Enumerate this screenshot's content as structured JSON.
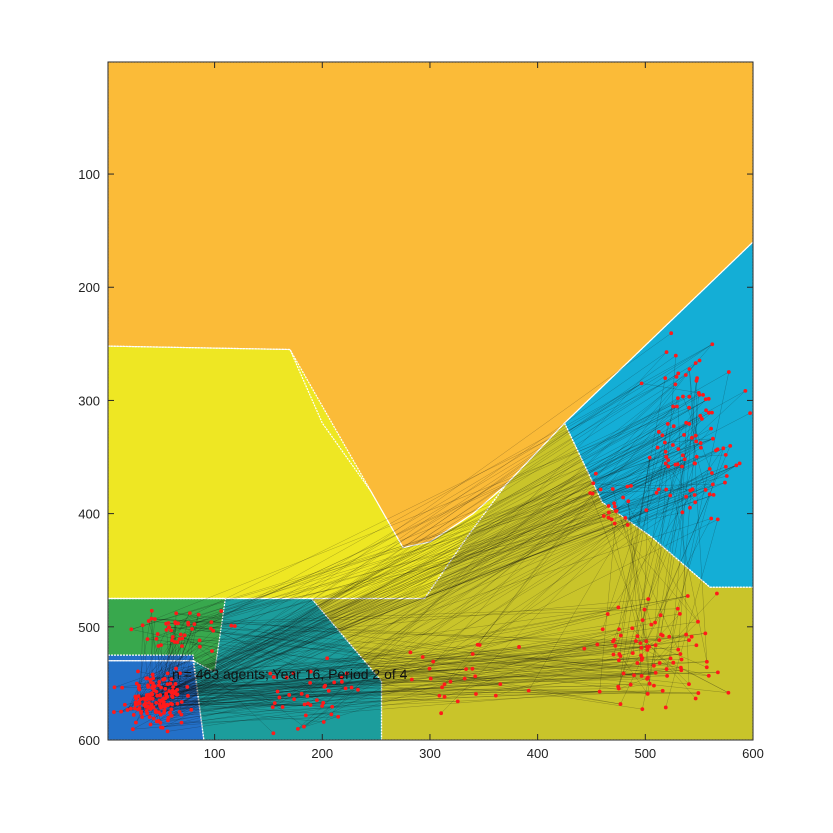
{
  "chart_data": {
    "type": "scatter",
    "annotation": "n = 463 agents; Year 16, Period 2 of 4",
    "xlim": [
      1,
      600
    ],
    "ylim": [
      1,
      600
    ],
    "y_reversed": true,
    "xticks": [
      100,
      200,
      300,
      400,
      500,
      600
    ],
    "yticks": [
      100,
      200,
      300,
      400,
      500,
      600
    ],
    "grid": false,
    "legend": "none",
    "colors": {
      "orange": "#fbbb38",
      "yellow": "#eee723",
      "olive": "#c9c42a",
      "blue": "#14aed6",
      "teal": "#1c9d9c",
      "dark_blue": "#2370c8",
      "green": "#38a84d",
      "points": "#ff1a1a",
      "trajectories": "#111111",
      "boundaries": "#ffffff"
    },
    "regions": [
      {
        "name": "orange",
        "points": [
          [
            1,
            1
          ],
          [
            600,
            1
          ],
          [
            600,
            160
          ],
          [
            425,
            320
          ],
          [
            370,
            375
          ],
          [
            340,
            400
          ],
          [
            300,
            425
          ],
          [
            275,
            430
          ],
          [
            245,
            380
          ],
          [
            200,
            320
          ],
          [
            170,
            255
          ],
          [
            1,
            252
          ]
        ]
      },
      {
        "name": "yellow",
        "points": [
          [
            1,
            252
          ],
          [
            170,
            255
          ],
          [
            245,
            380
          ],
          [
            275,
            430
          ],
          [
            300,
            425
          ],
          [
            340,
            400
          ],
          [
            370,
            375
          ],
          [
            335,
            420
          ],
          [
            295,
            475
          ],
          [
            1,
            475
          ]
        ]
      },
      {
        "name": "blue",
        "points": [
          [
            425,
            320
          ],
          [
            600,
            160
          ],
          [
            600,
            465
          ],
          [
            560,
            465
          ],
          [
            505,
            420
          ],
          [
            460,
            390
          ]
        ]
      },
      {
        "name": "olive",
        "points": [
          [
            295,
            475
          ],
          [
            335,
            420
          ],
          [
            370,
            375
          ],
          [
            425,
            320
          ],
          [
            460,
            390
          ],
          [
            505,
            420
          ],
          [
            560,
            465
          ],
          [
            600,
            465
          ],
          [
            600,
            600
          ],
          [
            255,
            600
          ],
          [
            255,
            548
          ],
          [
            190,
            475
          ]
        ]
      },
      {
        "name": "teal",
        "points": [
          [
            1,
            475
          ],
          [
            190,
            475
          ],
          [
            255,
            548
          ],
          [
            255,
            600
          ],
          [
            90,
            600
          ],
          [
            80,
            530
          ],
          [
            1,
            530
          ]
        ]
      },
      {
        "name": "green",
        "points": [
          [
            1,
            475
          ],
          [
            110,
            475
          ],
          [
            100,
            540
          ],
          [
            80,
            530
          ],
          [
            1,
            530
          ]
        ]
      },
      {
        "name": "dark_blue",
        "points": [
          [
            1,
            525
          ],
          [
            80,
            525
          ],
          [
            90,
            600
          ],
          [
            1,
            600
          ]
        ]
      }
    ],
    "clusters": [
      {
        "cx": 45,
        "cy": 565,
        "rx": 42,
        "ry": 32,
        "n": 150
      },
      {
        "cx": 75,
        "cy": 500,
        "rx": 60,
        "ry": 25,
        "n": 45
      },
      {
        "cx": 190,
        "cy": 560,
        "rx": 70,
        "ry": 38,
        "n": 40
      },
      {
        "cx": 330,
        "cy": 545,
        "rx": 90,
        "ry": 55,
        "n": 25
      },
      {
        "cx": 500,
        "cy": 520,
        "rx": 90,
        "ry": 70,
        "n": 85
      },
      {
        "cx": 545,
        "cy": 330,
        "rx": 60,
        "ry": 110,
        "n": 95
      },
      {
        "cx": 470,
        "cy": 390,
        "rx": 40,
        "ry": 45,
        "n": 23
      }
    ]
  }
}
